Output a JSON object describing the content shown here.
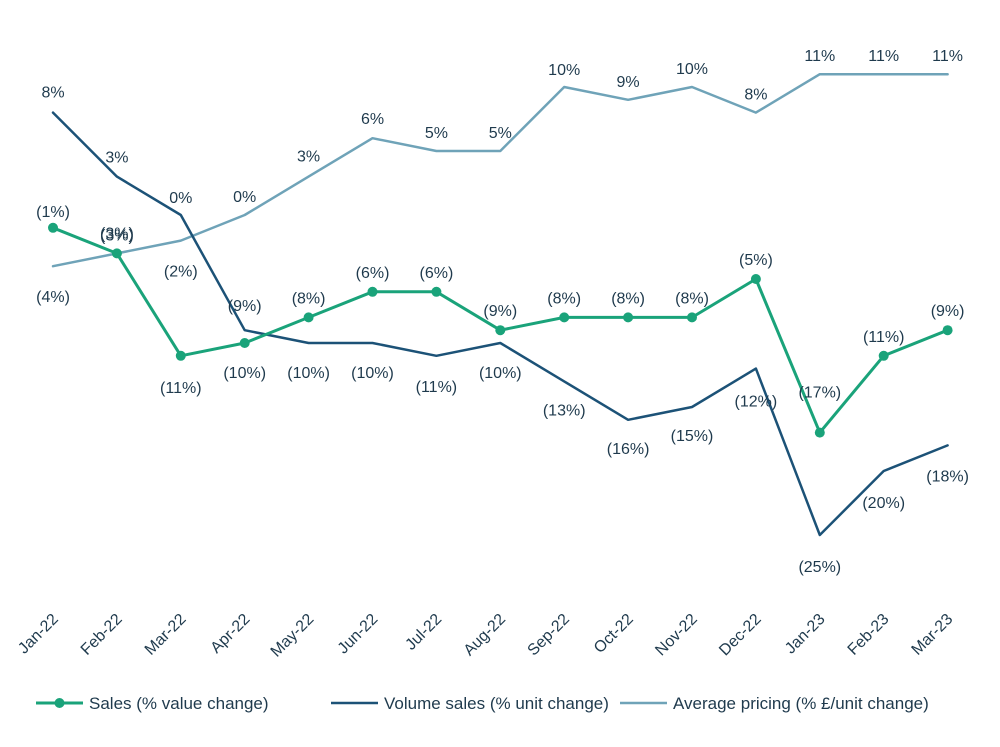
{
  "chart_data": {
    "type": "line",
    "categories": [
      "Jan-22",
      "Feb-22",
      "Mar-22",
      "Apr-22",
      "May-22",
      "Jun-22",
      "Jul-22",
      "Aug-22",
      "Sep-22",
      "Oct-22",
      "Nov-22",
      "Dec-22",
      "Jan-23",
      "Feb-23",
      "Mar-23"
    ],
    "series": [
      {
        "name": "Sales (% value change)",
        "color": "#1aa37a",
        "markers": true,
        "values": [
          -1,
          -3,
          -11,
          -10,
          -8,
          -6,
          -6,
          -9,
          -8,
          -8,
          -8,
          -5,
          -17,
          -11,
          -9
        ],
        "labels": [
          "(1%)",
          "(3%)",
          "(11%)",
          "(10%)",
          "(8%)",
          "(6%)",
          "(6%)",
          "(9%)",
          "(8%)",
          "(8%)",
          "(8%)",
          "(5%)",
          "(17%)",
          "(11%)",
          "(9%)"
        ]
      },
      {
        "name": "Volume sales (% unit change)",
        "color": "#1c5277",
        "markers": false,
        "values": [
          8,
          3,
          0,
          -9,
          -10,
          -10,
          -11,
          -10,
          -13,
          -16,
          -15,
          -12,
          -25,
          -20,
          -18
        ],
        "labels": [
          "8%",
          "3%",
          "0%",
          "(9%)",
          "(10%)",
          "(10%)",
          "(11%)",
          "(10%)",
          "(13%)",
          "(16%)",
          "(15%)",
          "(12%)",
          "(25%)",
          "(20%)",
          "(18%)"
        ]
      },
      {
        "name": "Average pricing (% £/unit change)",
        "color": "#6fa3b8",
        "markers": false,
        "values": [
          -4,
          -3,
          -2,
          0,
          3,
          6,
          5,
          5,
          10,
          9,
          10,
          8,
          11,
          11,
          11
        ],
        "labels": [
          "(4%)",
          "(3%)",
          "(2%)",
          "0%",
          "3%",
          "6%",
          "5%",
          "5%",
          "10%",
          "9%",
          "10%",
          "8%",
          "11%",
          "11%",
          "11%"
        ]
      }
    ],
    "ylim": [
      -25,
      11
    ],
    "grid": false,
    "legend_position": "bottom"
  }
}
